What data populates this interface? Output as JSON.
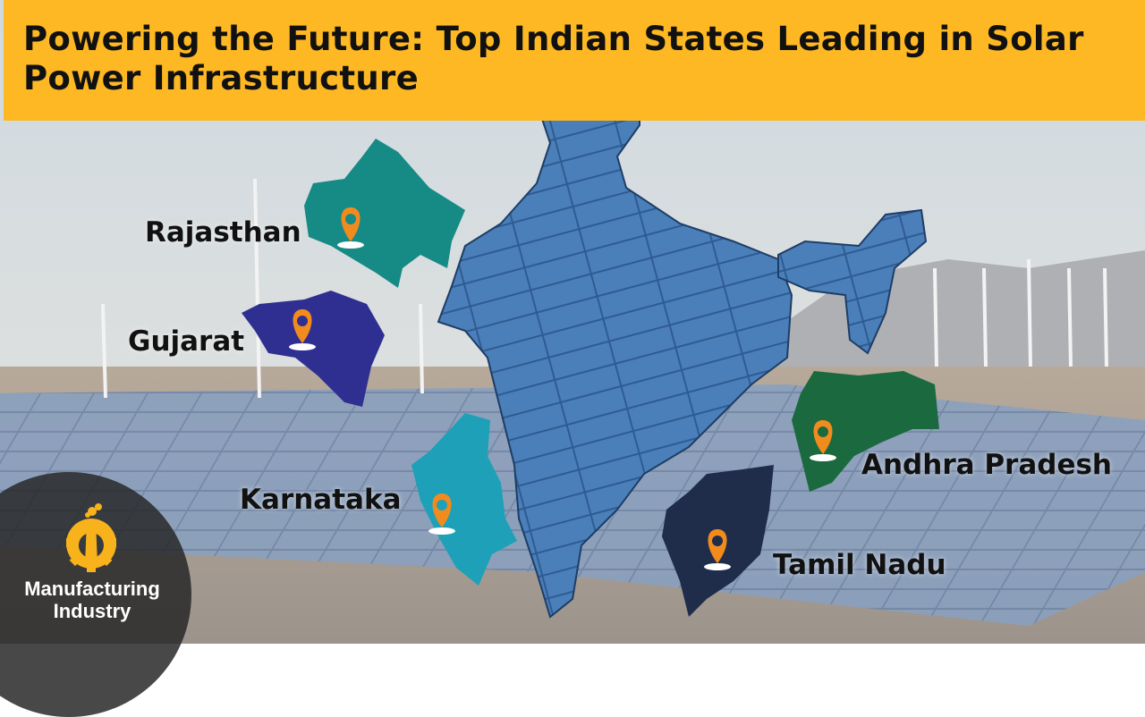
{
  "title": "Powering the Future: Top Indian States Leading in Solar Power Infrastructure",
  "states": [
    {
      "name": "Rajasthan",
      "color": "#168a85"
    },
    {
      "name": "Gujarat",
      "color": "#2f2e91"
    },
    {
      "name": "Karnataka",
      "color": "#1ea0b8"
    },
    {
      "name": "Andhra Pradesh",
      "color": "#1b6a3f"
    },
    {
      "name": "Tamil Nadu",
      "color": "#1f2d4b"
    }
  ],
  "pin_icon": "map-pin-icon",
  "pin_color": "#f28b1d",
  "banner_color": "#fdb823",
  "logo": {
    "icon": "factory-gear-icon",
    "line1": "Manufacturing",
    "line2": "Industry",
    "color": "#f8b21c"
  }
}
